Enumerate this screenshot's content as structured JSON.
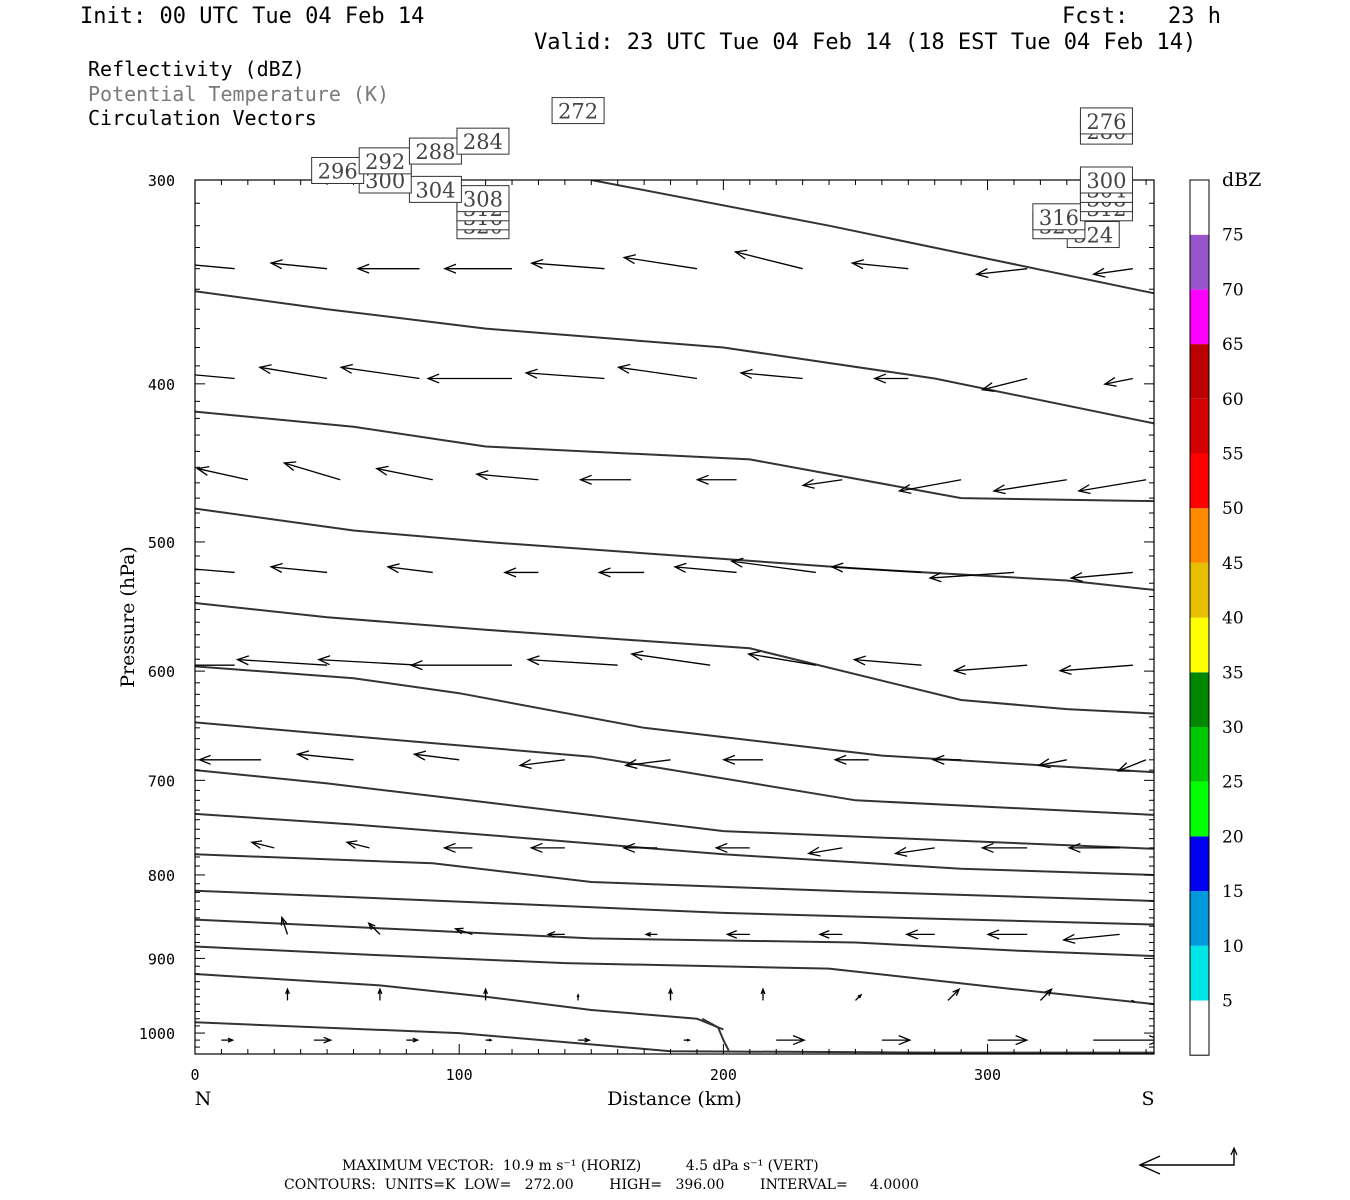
{
  "header": {
    "init": "Init: 00 UTC Tue 04 Feb 14",
    "fcst": "Fcst:   23 h",
    "valid": "Valid: 23 UTC Tue 04 Feb 14 (18 EST Tue 04 Feb 14)",
    "field1": "Reflectivity (dBZ)",
    "field2": "Potential Temperature (K)",
    "field3": "Circulation Vectors"
  },
  "footer": {
    "line1": "MAXIMUM VECTOR:  10.9 m s⁻¹ (HORIZ)          4.5 dPa s⁻¹ (VERT)",
    "line2": "CONTOURS:  UNITS=K  LOW=   272.00        HIGH=   396.00        INTERVAL=     4.0000"
  },
  "chart_data": {
    "type": "cross-section",
    "xlabel": "Distance (km)",
    "ylabel": "Pressure (hPa)",
    "xlim": [
      0,
      363
    ],
    "ylim": [
      1030,
      300
    ],
    "y_scale": "log",
    "x_ticks": [
      "0",
      "100",
      "200",
      "300"
    ],
    "y_ticks": [
      "300",
      "400",
      "500",
      "600",
      "700",
      "800",
      "900",
      "1000"
    ],
    "x_end_labels": {
      "left": "N",
      "right": "S"
    },
    "colorbar": {
      "title": "dBZ",
      "labels": [
        "5",
        "10",
        "15",
        "20",
        "25",
        "30",
        "35",
        "40",
        "45",
        "50",
        "55",
        "60",
        "65",
        "70",
        "75"
      ],
      "colors": [
        "#ffffff",
        "#00e5e5",
        "#0099dd",
        "#0000f0",
        "#00ff00",
        "#00c800",
        "#008800",
        "#ffff00",
        "#e5bf00",
        "#ff8a00",
        "#ff0000",
        "#d40000",
        "#bb0000",
        "#ff00ff",
        "#9955cc",
        "#ffffff"
      ]
    },
    "contours": [
      {
        "label": "324",
        "x": [
          150,
          240,
          363
        ],
        "p": [
          300,
          320,
          352
        ],
        "label_at": [
          [
            340,
            324
          ]
        ]
      },
      {
        "label": "320",
        "x": [
          0,
          50,
          110,
          200,
          280,
          363
        ],
        "p": [
          351,
          360,
          370,
          380,
          397,
          423
        ],
        "label_at": [
          [
            109,
            320
          ],
          [
            327,
            320
          ]
        ]
      },
      {
        "label": "316",
        "x": [
          0,
          60,
          110,
          210,
          290,
          363
        ],
        "p": [
          416,
          425,
          437,
          445,
          470,
          472
        ],
        "label_at": [
          [
            109,
            316
          ],
          [
            327,
            316
          ]
        ]
      },
      {
        "label": "312",
        "x": [
          0,
          60,
          110,
          250,
          330,
          363
        ],
        "p": [
          477,
          492,
          500,
          519,
          528,
          535
        ],
        "label_at": [
          [
            109,
            312
          ],
          [
            345,
            312
          ]
        ]
      },
      {
        "label": "308",
        "x": [
          0,
          50,
          110,
          210,
          290,
          330,
          363
        ],
        "p": [
          545,
          556,
          566,
          581,
          625,
          633,
          637
        ],
        "label_at": [
          [
            109,
            308
          ],
          [
            345,
            308
          ]
        ]
      },
      {
        "label": "304",
        "x": [
          0,
          60,
          100,
          170,
          260,
          363
        ],
        "p": [
          596,
          606,
          619,
          650,
          676,
          692
        ],
        "label_at": [
          [
            91,
            304
          ],
          [
            345,
            304
          ]
        ]
      },
      {
        "label": "300",
        "x": [
          0,
          70,
          150,
          250,
          363
        ],
        "p": [
          645,
          660,
          677,
          720,
          735
        ],
        "label_at": [
          [
            72,
            300
          ],
          [
            345,
            300
          ]
        ]
      },
      {
        "label": "296",
        "x": [
          0,
          50,
          110,
          200,
          363
        ],
        "p": [
          690,
          703,
          722,
          752,
          771
        ],
        "label_at": [
          [
            54,
            296
          ]
        ]
      },
      {
        "label": "292",
        "x": [
          0,
          60,
          110,
          200,
          290,
          363
        ],
        "p": [
          734,
          745,
          756,
          777,
          793,
          800
        ],
        "label_at": [
          [
            72,
            292
          ]
        ]
      },
      {
        "label": "288",
        "x": [
          0,
          90,
          150,
          250,
          363
        ],
        "p": [
          777,
          787,
          808,
          819,
          830
        ],
        "label_at": [
          [
            91,
            288
          ]
        ]
      },
      {
        "label": "284",
        "x": [
          0,
          110,
          200,
          280,
          363
        ],
        "p": [
          818,
          832,
          844,
          851,
          858
        ],
        "label_at": [
          [
            109,
            284
          ]
        ]
      },
      {
        "label": "280",
        "x": [
          0,
          80,
          150,
          250,
          310,
          363
        ],
        "p": [
          852,
          864,
          875,
          880,
          890,
          897
        ],
        "label_at": [
          [
            345,
            280
          ]
        ]
      },
      {
        "label": "276",
        "x": [
          0,
          70,
          140,
          240,
          310,
          363
        ],
        "p": [
          885,
          896,
          906,
          913,
          940,
          960
        ],
        "label_at": [
          [
            345,
            276
          ]
        ]
      },
      {
        "label": "272",
        "x": [
          0,
          70,
          110,
          150,
          190,
          200
        ],
        "p": [
          920,
          935,
          950,
          968,
          980,
          995
        ],
        "label_at": [
          [
            145,
            272
          ]
        ]
      },
      {
        "label": "",
        "x": [
          0,
          100,
          180,
          280,
          363
        ],
        "p": [
          985,
          1000,
          1026,
          1028,
          1028
        ],
        "label_at": []
      },
      {
        "label": "",
        "x": [
          192,
          198,
          200,
          202
        ],
        "p": [
          980,
          992,
          1010,
          1025
        ],
        "label_at": []
      }
    ],
    "vectors": [
      {
        "p": 340,
        "x": [
          15,
          50,
          85,
          120,
          155,
          190,
          230,
          270,
          315,
          355
        ],
        "u": [
          -22,
          -20,
          -22,
          -24,
          -26,
          -26,
          -24,
          -20,
          -18,
          -14
        ],
        "w": [
          -2,
          -2,
          0,
          0,
          -2,
          -4,
          -6,
          -2,
          2,
          2
        ]
      },
      {
        "p": 397,
        "x": [
          15,
          50,
          85,
          120,
          155,
          190,
          230,
          270,
          315,
          355
        ],
        "u": [
          -22,
          -24,
          -28,
          -30,
          -28,
          -28,
          -22,
          -12,
          -16,
          -10
        ],
        "w": [
          -2,
          -4,
          -4,
          0,
          -2,
          -4,
          -2,
          0,
          4,
          2
        ]
      },
      {
        "p": 458,
        "x": [
          20,
          55,
          90,
          130,
          165,
          205,
          245,
          290,
          330,
          360
        ],
        "u": [
          -18,
          -20,
          -20,
          -22,
          -18,
          -14,
          -14,
          -22,
          -26,
          -24
        ],
        "w": [
          -4,
          -6,
          -4,
          -2,
          0,
          0,
          2,
          4,
          4,
          4
        ]
      },
      {
        "p": 522,
        "x": [
          15,
          50,
          90,
          130,
          170,
          205,
          235,
          275,
          310,
          355
        ],
        "u": [
          -24,
          -20,
          -16,
          -12,
          -16,
          -22,
          -30,
          -32,
          -30,
          -22
        ],
        "w": [
          -2,
          -2,
          -2,
          0,
          0,
          -2,
          -4,
          -2,
          2,
          2
        ]
      },
      {
        "p": 595,
        "x": [
          15,
          50,
          85,
          120,
          160,
          195,
          235,
          275,
          315,
          355
        ],
        "u": [
          -34,
          -32,
          -36,
          -36,
          -32,
          -28,
          -24,
          -24,
          -26,
          -26
        ],
        "w": [
          0,
          -2,
          -2,
          0,
          -2,
          -4,
          -4,
          -2,
          2,
          2
        ]
      },
      {
        "p": 680,
        "x": [
          25,
          60,
          100,
          140,
          180,
          215,
          255,
          290,
          330,
          360
        ],
        "u": [
          -22,
          -20,
          -16,
          -16,
          -16,
          -14,
          -12,
          -10,
          -10,
          -10
        ],
        "w": [
          0,
          -2,
          -2,
          2,
          2,
          0,
          0,
          0,
          2,
          4
        ]
      },
      {
        "p": 770,
        "x": [
          30,
          66,
          105,
          140,
          175,
          210,
          245,
          280,
          315,
          350
        ],
        "u": [
          -8,
          -8,
          -10,
          -12,
          -12,
          -12,
          -12,
          -14,
          -16,
          -18
        ],
        "w": [
          -2,
          -2,
          0,
          0,
          0,
          0,
          2,
          2,
          0,
          0
        ]
      },
      {
        "p": 870,
        "x": [
          35,
          70,
          105,
          140,
          175,
          210,
          245,
          280,
          315,
          350
        ],
        "u": [
          -2,
          -4,
          -6,
          -6,
          -4,
          -8,
          -8,
          -10,
          -14,
          -20
        ],
        "w": [
          -6,
          -4,
          -2,
          0,
          0,
          0,
          0,
          0,
          0,
          2
        ]
      },
      {
        "p": 955,
        "x": [
          35,
          70,
          110,
          145,
          180,
          215,
          250,
          285,
          320,
          355
        ],
        "u": [
          0,
          0,
          0,
          0,
          0,
          0,
          2,
          4,
          4,
          0
        ],
        "w": [
          -4,
          -4,
          -4,
          -2,
          -4,
          -4,
          -2,
          -4,
          -4,
          0
        ]
      },
      {
        "p": 1010,
        "x": [
          10,
          45,
          80,
          110,
          145,
          185,
          220,
          260,
          300,
          340
        ],
        "u": [
          4,
          6,
          4,
          2,
          4,
          2,
          10,
          10,
          14,
          24
        ],
        "w": [
          0,
          0,
          0,
          0,
          0,
          0,
          0,
          0,
          0,
          0
        ]
      }
    ],
    "max_vector_legend": "←"
  }
}
